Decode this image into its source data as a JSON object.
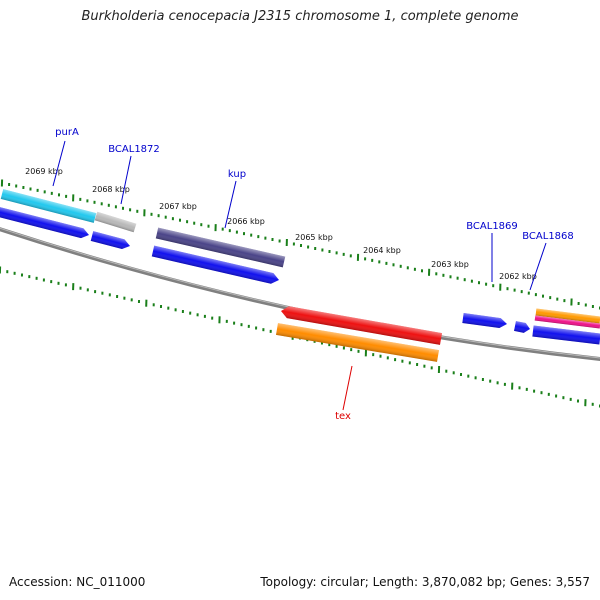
{
  "title": "Burkholderia cenocepacia J2315 chromosome 1, complete genome",
  "footer": {
    "accession": "Accession: NC_011000",
    "summary": "Topology: circular; Length: 3,870,082 bp; Genes: 3,557"
  },
  "colors": {
    "backbone": "#808080",
    "tick": "#1a7f1a",
    "label_forward": "#0000cc",
    "label_reverse": "#dd0000"
  },
  "ruler": [
    "2069 kbp",
    "2068 kbp",
    "2067 kbp",
    "2066 kbp",
    "2065 kbp",
    "2064 kbp",
    "2063 kbp",
    "2062 kbp"
  ],
  "gene_labels": [
    {
      "name": "purA",
      "strand": "forward"
    },
    {
      "name": "BCAL1872",
      "strand": "forward"
    },
    {
      "name": "kup",
      "strand": "forward"
    },
    {
      "name": "BCAL1869",
      "strand": "forward"
    },
    {
      "name": "BCAL1868",
      "strand": "forward"
    },
    {
      "name": "tex",
      "strand": "reverse"
    }
  ],
  "features": [
    {
      "name": "purA",
      "color": "#22c8ee"
    },
    {
      "name": "BCAL1872",
      "color": "#b8b8b8"
    },
    {
      "name": "kup",
      "color": "#4a4488"
    },
    {
      "name": "tex",
      "color": "#ee1111"
    },
    {
      "name": "tex-cds",
      "color": "#ff8c00"
    },
    {
      "name": "BCAL1868",
      "color": "#ff9900"
    },
    {
      "name": "BCAL1868-b",
      "color": "#ee1188"
    },
    {
      "name": "cds",
      "color": "#1111ee"
    }
  ]
}
